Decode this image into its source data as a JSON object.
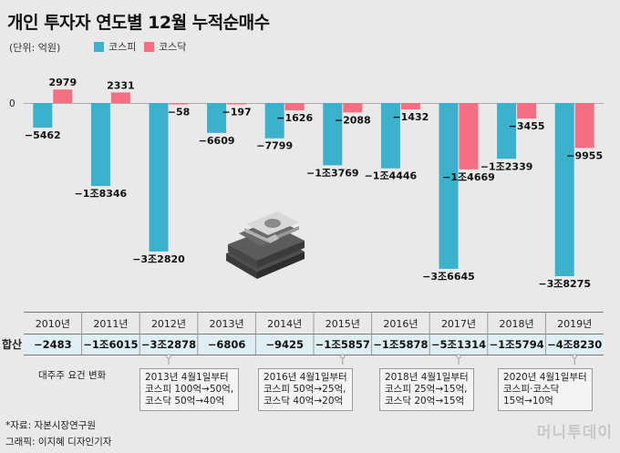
{
  "title": "개인 투자자 연도별 12월 누적순매수",
  "unit_label": "(단위: 억원)",
  "legend": [
    {
      "name": "코스피",
      "color": "#3bb1cb"
    },
    {
      "name": "코스닥",
      "color": "#f56f82"
    }
  ],
  "chart_data": {
    "type": "bar",
    "title": "개인 투자자 연도별 12월 누적순매수",
    "ylabel": "억원",
    "zero_label": "0",
    "categories": [
      "2010년",
      "2011년",
      "2012년",
      "2013년",
      "2014년",
      "2015년",
      "2016년",
      "2017년",
      "2018년",
      "2019년"
    ],
    "series": [
      {
        "name": "코스피",
        "color": "#3bb1cb",
        "values": [
          -5462,
          -18346,
          -32820,
          -6609,
          -7799,
          -13769,
          -14446,
          -36645,
          -12339,
          -38275
        ],
        "labels": [
          "−5462",
          "−1조8346",
          "−3조2820",
          "−6609",
          "−7799",
          "−1조3769",
          "−1조4446",
          "−3조6645",
          "−1조2339",
          "−3조8275"
        ]
      },
      {
        "name": "코스닥",
        "color": "#f56f82",
        "values": [
          2979,
          2331,
          -58,
          -197,
          -1626,
          -2088,
          -1432,
          -14669,
          -3455,
          -9955
        ],
        "labels": [
          "2979",
          "2331",
          "−58",
          "−197",
          "−1626",
          "−2088",
          "−1432",
          "−1조4669",
          "−3455",
          "−9955"
        ]
      }
    ],
    "ylim": [
      -40000,
      3500
    ]
  },
  "table": {
    "row_label": "합산",
    "totals": [
      "−2483",
      "−1조6015",
      "−3조2878",
      "−6806",
      "−9425",
      "−1조5857",
      "−1조5878",
      "−5조1314",
      "−1조5794",
      "−4조8230"
    ]
  },
  "notes": {
    "heading": "대주주 요건 변화",
    "items": [
      {
        "text": "2013년 4월1일부터\n코스피 100억→50억,\n코스닥 50억→40억",
        "year": "2012년"
      },
      {
        "text": "2016년 4월1일부터\n코스피 50억→25억,\n코스닥 40억→20억",
        "year": "2015년"
      },
      {
        "text": "2018년 4월1일부터\n코스피 25억→15억,\n코스닥 20억→15억",
        "year": "2017년"
      },
      {
        "text": "2020년 4월1일부터\n코스피·코스닥\n15억→10억",
        "year": "2019년"
      }
    ]
  },
  "footer": {
    "source": "*자료: 자본시장연구원",
    "graphic": "그래픽: 이지혜 디자인기자"
  },
  "brand": "머니투데이"
}
